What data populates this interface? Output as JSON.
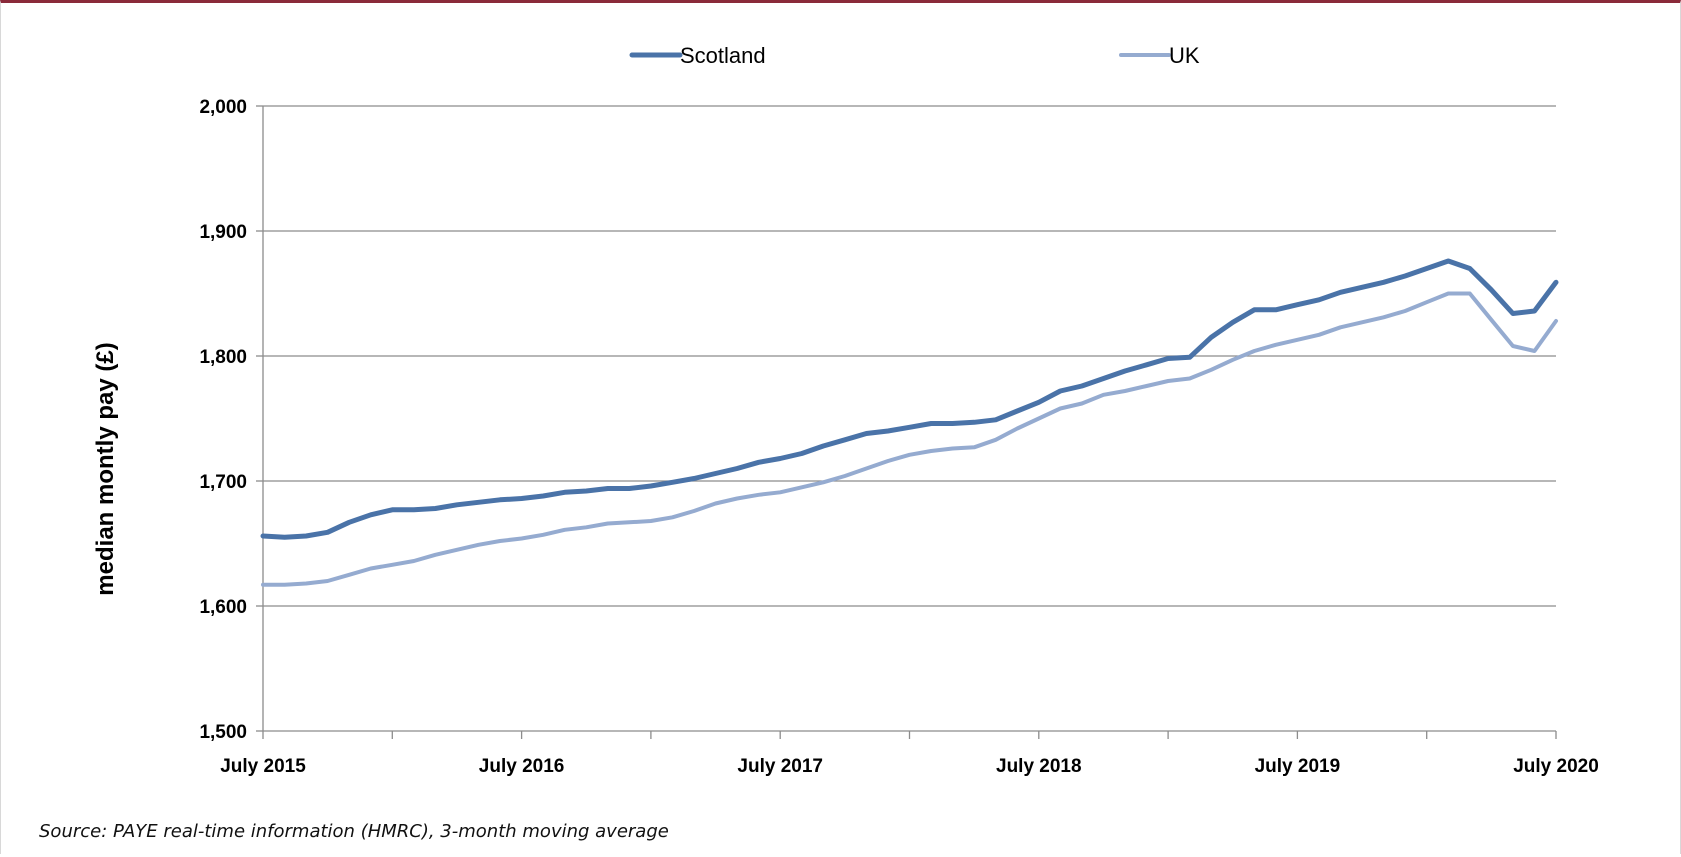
{
  "chart_data": {
    "type": "line",
    "title": "",
    "xlabel": "",
    "ylabel": "median montly pay (£)",
    "ylim": [
      1500,
      2000
    ],
    "yticks": [
      1500,
      1600,
      1700,
      1800,
      1900,
      2000
    ],
    "ytick_labels": [
      "1,500",
      "1,600",
      "1,700",
      "1,800",
      "1,900",
      "2,000"
    ],
    "xtick_labels": [
      "July 2015",
      "July 2016",
      "July 2017",
      "July 2018",
      "July 2019",
      "July 2020"
    ],
    "x_start": "2015-07",
    "n_points": 61,
    "grid": "horizontal",
    "legend_position": "top",
    "series": [
      {
        "name": "Scotland",
        "color": "#4a73a8",
        "values": [
          1656,
          1655,
          1656,
          1659,
          1667,
          1673,
          1677,
          1677,
          1678,
          1681,
          1683,
          1685,
          1686,
          1688,
          1691,
          1692,
          1694,
          1694,
          1696,
          1699,
          1702,
          1706,
          1710,
          1715,
          1718,
          1722,
          1728,
          1733,
          1738,
          1740,
          1743,
          1746,
          1746,
          1747,
          1749,
          1756,
          1763,
          1772,
          1776,
          1782,
          1788,
          1793,
          1798,
          1799,
          1815,
          1827,
          1837,
          1837,
          1841,
          1845,
          1851,
          1855,
          1859,
          1864,
          1870,
          1876,
          1870,
          1853,
          1834,
          1836,
          1859
        ]
      },
      {
        "name": "UK",
        "color": "#95abd0",
        "values": [
          1617,
          1617,
          1618,
          1620,
          1625,
          1630,
          1633,
          1636,
          1641,
          1645,
          1649,
          1652,
          1654,
          1657,
          1661,
          1663,
          1666,
          1667,
          1668,
          1671,
          1676,
          1682,
          1686,
          1689,
          1691,
          1695,
          1699,
          1704,
          1710,
          1716,
          1721,
          1724,
          1726,
          1727,
          1733,
          1742,
          1750,
          1758,
          1762,
          1769,
          1772,
          1776,
          1780,
          1782,
          1789,
          1797,
          1804,
          1809,
          1813,
          1817,
          1823,
          1827,
          1831,
          1836,
          1843,
          1850,
          1850,
          1829,
          1808,
          1804,
          1828
        ]
      }
    ]
  },
  "source_note": "Source: PAYE real-time information (HMRC), 3-month moving average"
}
